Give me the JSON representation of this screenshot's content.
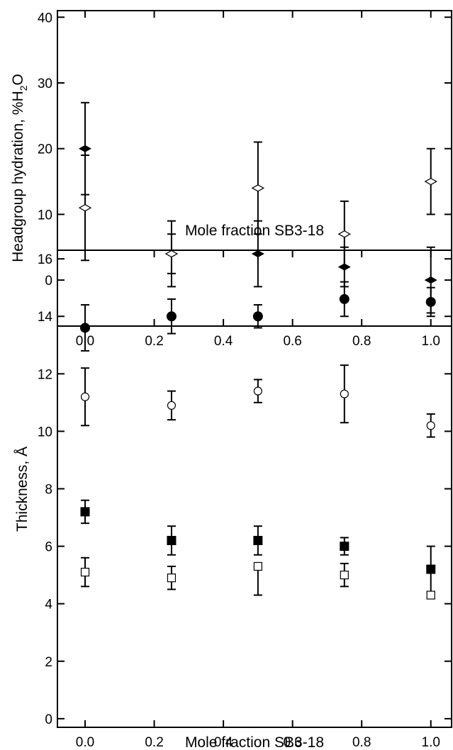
{
  "chart_data": [
    {
      "type": "scatter",
      "xlabel": "Mole fraction SB3-18",
      "ylabel_main": "Headgroup hydration, %H",
      "ylabel_sub": "2",
      "ylabel_tail": "O",
      "xlim": [
        -0.08,
        1.06
      ],
      "ylim": [
        -7,
        41
      ],
      "x_ticks": [
        "0.0",
        "0.2",
        "0.4",
        "0.6",
        "0.8",
        "1.0"
      ],
      "y_ticks": [
        "0",
        "10",
        "20",
        "30",
        "40"
      ],
      "series": [
        {
          "marker": "filled-diamond",
          "points": [
            {
              "x": 0.0,
              "y": 20,
              "lo": 13,
              "hi": 27
            },
            {
              "x": 0.25,
              "y": 4,
              "lo": 1,
              "hi": 7
            },
            {
              "x": 0.5,
              "y": 4,
              "lo": -1,
              "hi": 9
            },
            {
              "x": 0.75,
              "y": 2,
              "lo": -1,
              "hi": 5
            },
            {
              "x": 1.0,
              "y": 0,
              "lo": -5,
              "hi": 5
            }
          ]
        },
        {
          "marker": "open-diamond",
          "points": [
            {
              "x": 0.0,
              "y": 11,
              "lo": 3,
              "hi": 19
            },
            {
              "x": 0.25,
              "y": 4,
              "lo": -1,
              "hi": 9
            },
            {
              "x": 0.5,
              "y": 14,
              "lo": 7,
              "hi": 21
            },
            {
              "x": 0.75,
              "y": 7,
              "lo": 2,
              "hi": 12
            },
            {
              "x": 1.0,
              "y": 15,
              "lo": 10,
              "hi": 20
            }
          ]
        }
      ]
    },
    {
      "type": "scatter",
      "xlabel": "Mole fraction SB3-18",
      "ylabel": "Thickness, Å",
      "xlim": [
        -0.08,
        1.06
      ],
      "ylim": [
        -0.3,
        16.3
      ],
      "x_ticks": [
        "0.0",
        "0.2",
        "0.4",
        "0.6",
        "0.8",
        "1.0"
      ],
      "y_ticks": [
        "0",
        "2",
        "4",
        "6",
        "8",
        "10",
        "12",
        "14",
        "16"
      ],
      "series": [
        {
          "marker": "filled-circle",
          "points": [
            {
              "x": 0.0,
              "y": 13.6,
              "lo": 12.8,
              "hi": 14.4
            },
            {
              "x": 0.25,
              "y": 14.0,
              "lo": 13.4,
              "hi": 14.6
            },
            {
              "x": 0.5,
              "y": 14.0,
              "lo": 13.6,
              "hi": 14.4
            },
            {
              "x": 0.75,
              "y": 14.6,
              "lo": 14.0,
              "hi": 15.2
            },
            {
              "x": 1.0,
              "y": 14.5,
              "lo": 14.0,
              "hi": 15.0
            }
          ]
        },
        {
          "marker": "open-circle",
          "points": [
            {
              "x": 0.0,
              "y": 11.2,
              "lo": 10.2,
              "hi": 12.2
            },
            {
              "x": 0.25,
              "y": 10.9,
              "lo": 10.4,
              "hi": 11.4
            },
            {
              "x": 0.5,
              "y": 11.4,
              "lo": 11.0,
              "hi": 11.8
            },
            {
              "x": 0.75,
              "y": 11.3,
              "lo": 10.3,
              "hi": 12.3
            },
            {
              "x": 1.0,
              "y": 10.2,
              "lo": 9.8,
              "hi": 10.6
            }
          ]
        },
        {
          "marker": "filled-square",
          "points": [
            {
              "x": 0.0,
              "y": 7.2,
              "lo": 6.8,
              "hi": 7.6
            },
            {
              "x": 0.25,
              "y": 6.2,
              "lo": 5.7,
              "hi": 6.7
            },
            {
              "x": 0.5,
              "y": 6.2,
              "lo": 5.7,
              "hi": 6.7
            },
            {
              "x": 0.75,
              "y": 6.0,
              "lo": 5.7,
              "hi": 6.3
            },
            {
              "x": 1.0,
              "y": 5.2,
              "lo": 4.4,
              "hi": 6.0
            }
          ]
        },
        {
          "marker": "open-square",
          "points": [
            {
              "x": 0.0,
              "y": 5.1,
              "lo": 4.6,
              "hi": 5.6
            },
            {
              "x": 0.25,
              "y": 4.9,
              "lo": 4.5,
              "hi": 5.3
            },
            {
              "x": 0.5,
              "y": 5.3,
              "lo": 4.3,
              "hi": 5.3
            },
            {
              "x": 0.75,
              "y": 5.0,
              "lo": 4.6,
              "hi": 5.4
            },
            {
              "x": 1.0,
              "y": 4.3,
              "lo": 4.2,
              "hi": 4.4
            }
          ]
        }
      ]
    }
  ]
}
